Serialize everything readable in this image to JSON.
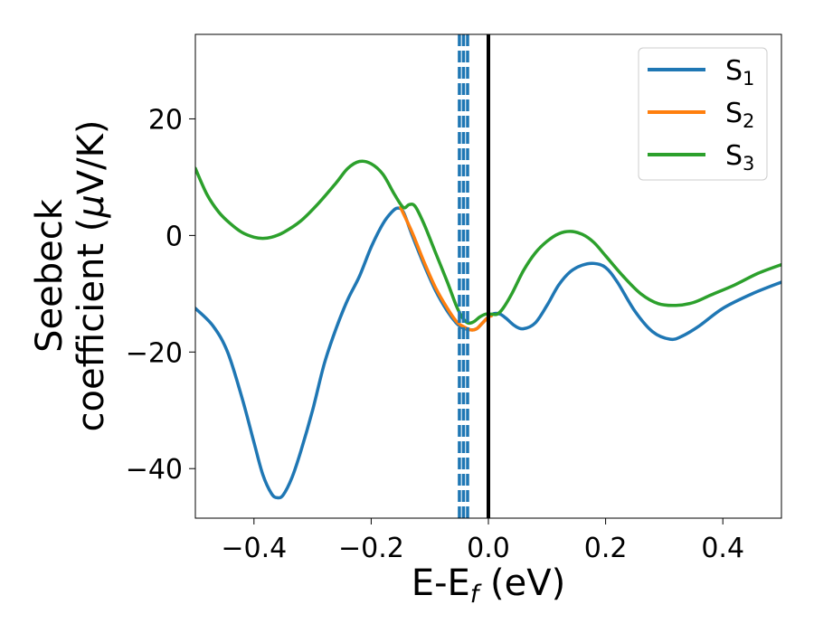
{
  "chart_data": {
    "type": "line",
    "xlabel": "E-E",
    "xlabel_sub": "f",
    "xlabel_unit": " (eV)",
    "ylabel_line1": "Seebeck",
    "ylabel_line2": "coefficient  (",
    "ylabel_mu": "μ",
    "ylabel_unit": "V/K)",
    "xlim": [
      -0.5,
      0.5
    ],
    "ylim": [
      -48.5,
      34.5
    ],
    "xticks": [
      -0.4,
      -0.2,
      0.0,
      0.2,
      0.4
    ],
    "xtick_labels": [
      "−0.4",
      "−0.2",
      "0.0",
      "0.2",
      "0.4"
    ],
    "yticks": [
      -40,
      -20,
      0,
      20
    ],
    "ytick_labels": [
      "−40",
      "−20",
      "0",
      "20"
    ],
    "grid": false,
    "legend_position": "top-right",
    "series": [
      {
        "name": "S",
        "sub": "1",
        "color": "#1f77b4",
        "points": [
          [
            -0.5,
            -12.5
          ],
          [
            -0.47,
            -15.5
          ],
          [
            -0.445,
            -20
          ],
          [
            -0.42,
            -28
          ],
          [
            -0.4,
            -35.5
          ],
          [
            -0.385,
            -41
          ],
          [
            -0.37,
            -44.3
          ],
          [
            -0.36,
            -45
          ],
          [
            -0.35,
            -44.5
          ],
          [
            -0.335,
            -41.5
          ],
          [
            -0.32,
            -37
          ],
          [
            -0.3,
            -30
          ],
          [
            -0.28,
            -22
          ],
          [
            -0.26,
            -16
          ],
          [
            -0.24,
            -11
          ],
          [
            -0.22,
            -7
          ],
          [
            -0.2,
            -2
          ],
          [
            -0.18,
            2
          ],
          [
            -0.165,
            4
          ],
          [
            -0.155,
            4.7
          ],
          [
            -0.145,
            4
          ],
          [
            -0.13,
            0
          ],
          [
            -0.11,
            -5
          ],
          [
            -0.09,
            -9.5
          ],
          [
            -0.07,
            -13
          ],
          [
            -0.055,
            -15
          ],
          [
            -0.045,
            -15.8
          ],
          [
            -0.03,
            -16.2
          ],
          [
            -0.02,
            -16
          ],
          [
            -0.01,
            -15
          ],
          [
            0.0,
            -14
          ],
          [
            0.01,
            -13.4
          ],
          [
            0.02,
            -13.5
          ],
          [
            0.03,
            -14.2
          ],
          [
            0.045,
            -15.5
          ],
          [
            0.06,
            -16
          ],
          [
            0.08,
            -15
          ],
          [
            0.1,
            -12
          ],
          [
            0.12,
            -8.5
          ],
          [
            0.14,
            -6.2
          ],
          [
            0.16,
            -5.1
          ],
          [
            0.18,
            -4.8
          ],
          [
            0.2,
            -5.5
          ],
          [
            0.22,
            -8
          ],
          [
            0.25,
            -13
          ],
          [
            0.28,
            -16.5
          ],
          [
            0.31,
            -17.8
          ],
          [
            0.33,
            -17.3
          ],
          [
            0.36,
            -15.5
          ],
          [
            0.4,
            -12.5
          ],
          [
            0.45,
            -10
          ],
          [
            0.5,
            -8
          ]
        ]
      },
      {
        "name": "S",
        "sub": "2",
        "color": "#ff7f0e",
        "points": [
          [
            -0.15,
            4.8
          ],
          [
            -0.13,
            0.5
          ],
          [
            -0.11,
            -4.5
          ],
          [
            -0.09,
            -9
          ],
          [
            -0.07,
            -12.5
          ],
          [
            -0.055,
            -14.7
          ],
          [
            -0.045,
            -15.5
          ],
          [
            -0.03,
            -16.2
          ],
          [
            -0.02,
            -16
          ],
          [
            -0.01,
            -15
          ],
          [
            0.0,
            -14
          ],
          [
            0.005,
            -13.8
          ]
        ]
      },
      {
        "name": "S",
        "sub": "3",
        "color": "#2ca02c",
        "points": [
          [
            -0.5,
            11.5
          ],
          [
            -0.48,
            7
          ],
          [
            -0.46,
            4
          ],
          [
            -0.44,
            2
          ],
          [
            -0.42,
            0.5
          ],
          [
            -0.4,
            -0.3
          ],
          [
            -0.385,
            -0.5
          ],
          [
            -0.37,
            -0.3
          ],
          [
            -0.35,
            0.5
          ],
          [
            -0.32,
            2.5
          ],
          [
            -0.29,
            5.5
          ],
          [
            -0.26,
            9
          ],
          [
            -0.24,
            11.5
          ],
          [
            -0.22,
            12.7
          ],
          [
            -0.2,
            12.3
          ],
          [
            -0.18,
            10.5
          ],
          [
            -0.16,
            7
          ],
          [
            -0.145,
            4.8
          ],
          [
            -0.135,
            5.3
          ],
          [
            -0.125,
            5
          ],
          [
            -0.11,
            2
          ],
          [
            -0.09,
            -3
          ],
          [
            -0.07,
            -8
          ],
          [
            -0.055,
            -12
          ],
          [
            -0.045,
            -14
          ],
          [
            -0.035,
            -15
          ],
          [
            -0.025,
            -14.8
          ],
          [
            -0.015,
            -14
          ],
          [
            -0.005,
            -13.5
          ],
          [
            0.005,
            -13.5
          ],
          [
            0.015,
            -13.5
          ],
          [
            0.025,
            -12.5
          ],
          [
            0.04,
            -10
          ],
          [
            0.06,
            -6
          ],
          [
            0.08,
            -3
          ],
          [
            0.1,
            -1
          ],
          [
            0.12,
            0.3
          ],
          [
            0.14,
            0.7
          ],
          [
            0.16,
            0.2
          ],
          [
            0.18,
            -1.2
          ],
          [
            0.2,
            -3.5
          ],
          [
            0.23,
            -7
          ],
          [
            0.26,
            -10
          ],
          [
            0.29,
            -11.7
          ],
          [
            0.32,
            -12
          ],
          [
            0.35,
            -11.5
          ],
          [
            0.38,
            -10.2
          ],
          [
            0.42,
            -8.5
          ],
          [
            0.46,
            -6.5
          ],
          [
            0.5,
            -5
          ]
        ]
      }
    ],
    "vlines": [
      {
        "x": -0.0495,
        "style": "dashed",
        "color": "#1f77b4"
      },
      {
        "x": -0.0425,
        "style": "dashed",
        "color": "#1f77b4"
      },
      {
        "x": -0.0355,
        "style": "dashed",
        "color": "#1f77b4"
      },
      {
        "x": 0.0,
        "style": "solid",
        "color": "#000000"
      }
    ]
  }
}
